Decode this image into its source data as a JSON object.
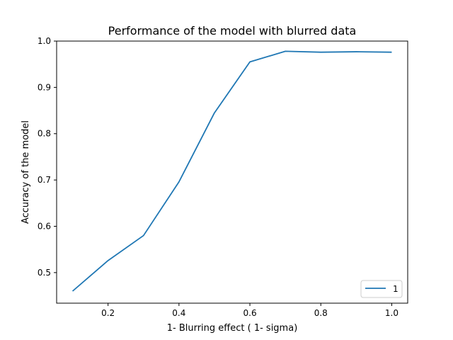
{
  "chart_data": {
    "type": "line",
    "title": "Performance of the model with blurred data",
    "xlabel": "1- Blurring effect ( 1- sigma)",
    "ylabel": "Accuracy of the model",
    "xlim": [
      0.055,
      1.045
    ],
    "ylim": [
      0.434,
      1.0
    ],
    "xticks": [
      0.2,
      0.4,
      0.6,
      0.8,
      1.0
    ],
    "xtick_labels": [
      "0.2",
      "0.4",
      "0.6",
      "0.8",
      "1.0"
    ],
    "yticks": [
      0.5,
      0.6,
      0.7,
      0.8,
      0.9,
      1.0
    ],
    "ytick_labels": [
      "0.5",
      "0.6",
      "0.7",
      "0.8",
      "0.9",
      "1.0"
    ],
    "grid": false,
    "legend": {
      "position": "lower-right",
      "entries": [
        "1"
      ]
    },
    "series": [
      {
        "name": "1",
        "color": "#1f77b4",
        "x": [
          0.1,
          0.2,
          0.3,
          0.4,
          0.5,
          0.6,
          0.7,
          0.8,
          0.9,
          1.0
        ],
        "y": [
          0.46,
          0.526,
          0.58,
          0.696,
          0.845,
          0.955,
          0.978,
          0.976,
          0.977,
          0.976
        ]
      }
    ]
  }
}
